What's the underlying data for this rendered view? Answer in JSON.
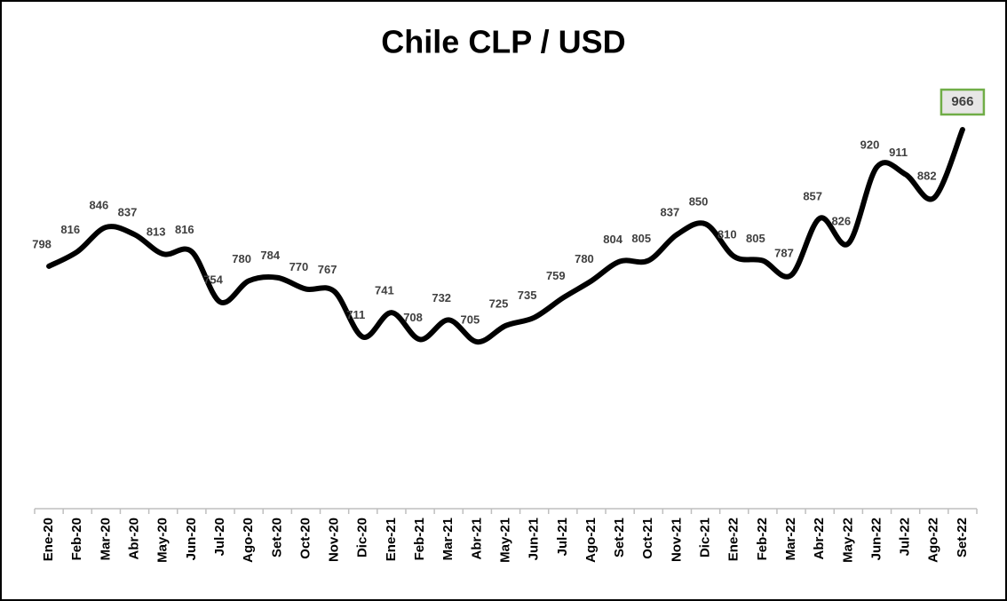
{
  "chart_data": {
    "type": "line",
    "title": "Chile CLP / USD",
    "categories": [
      "Ene-20",
      "Feb-20",
      "Mar-20",
      "Abr-20",
      "May-20",
      "Jun-20",
      "Jul-20",
      "Ago-20",
      "Set-20",
      "Oct-20",
      "Nov-20",
      "Dic-20",
      "Ene-21",
      "Feb-21",
      "Mar-21",
      "Abr-21",
      "May-21",
      "Jun-21",
      "Jul-21",
      "Ago-21",
      "Set-21",
      "Oct-21",
      "Nov-21",
      "Dic-21",
      "Ene-22",
      "Feb-22",
      "Mar-22",
      "Abr-22",
      "May-22",
      "Jun-22",
      "Jul-22",
      "Ago-22",
      "Set-22"
    ],
    "series": [
      {
        "name": "CLP / USD",
        "color": "#000000",
        "values": [
          798,
          816,
          846,
          837,
          813,
          816,
          754,
          780,
          784,
          770,
          767,
          711,
          741,
          708,
          732,
          705,
          725,
          735,
          759,
          780,
          804,
          805,
          837,
          850,
          810,
          805,
          787,
          857,
          826,
          920,
          911,
          882,
          966
        ]
      }
    ],
    "ylim": [
      500,
      1050
    ]
  }
}
